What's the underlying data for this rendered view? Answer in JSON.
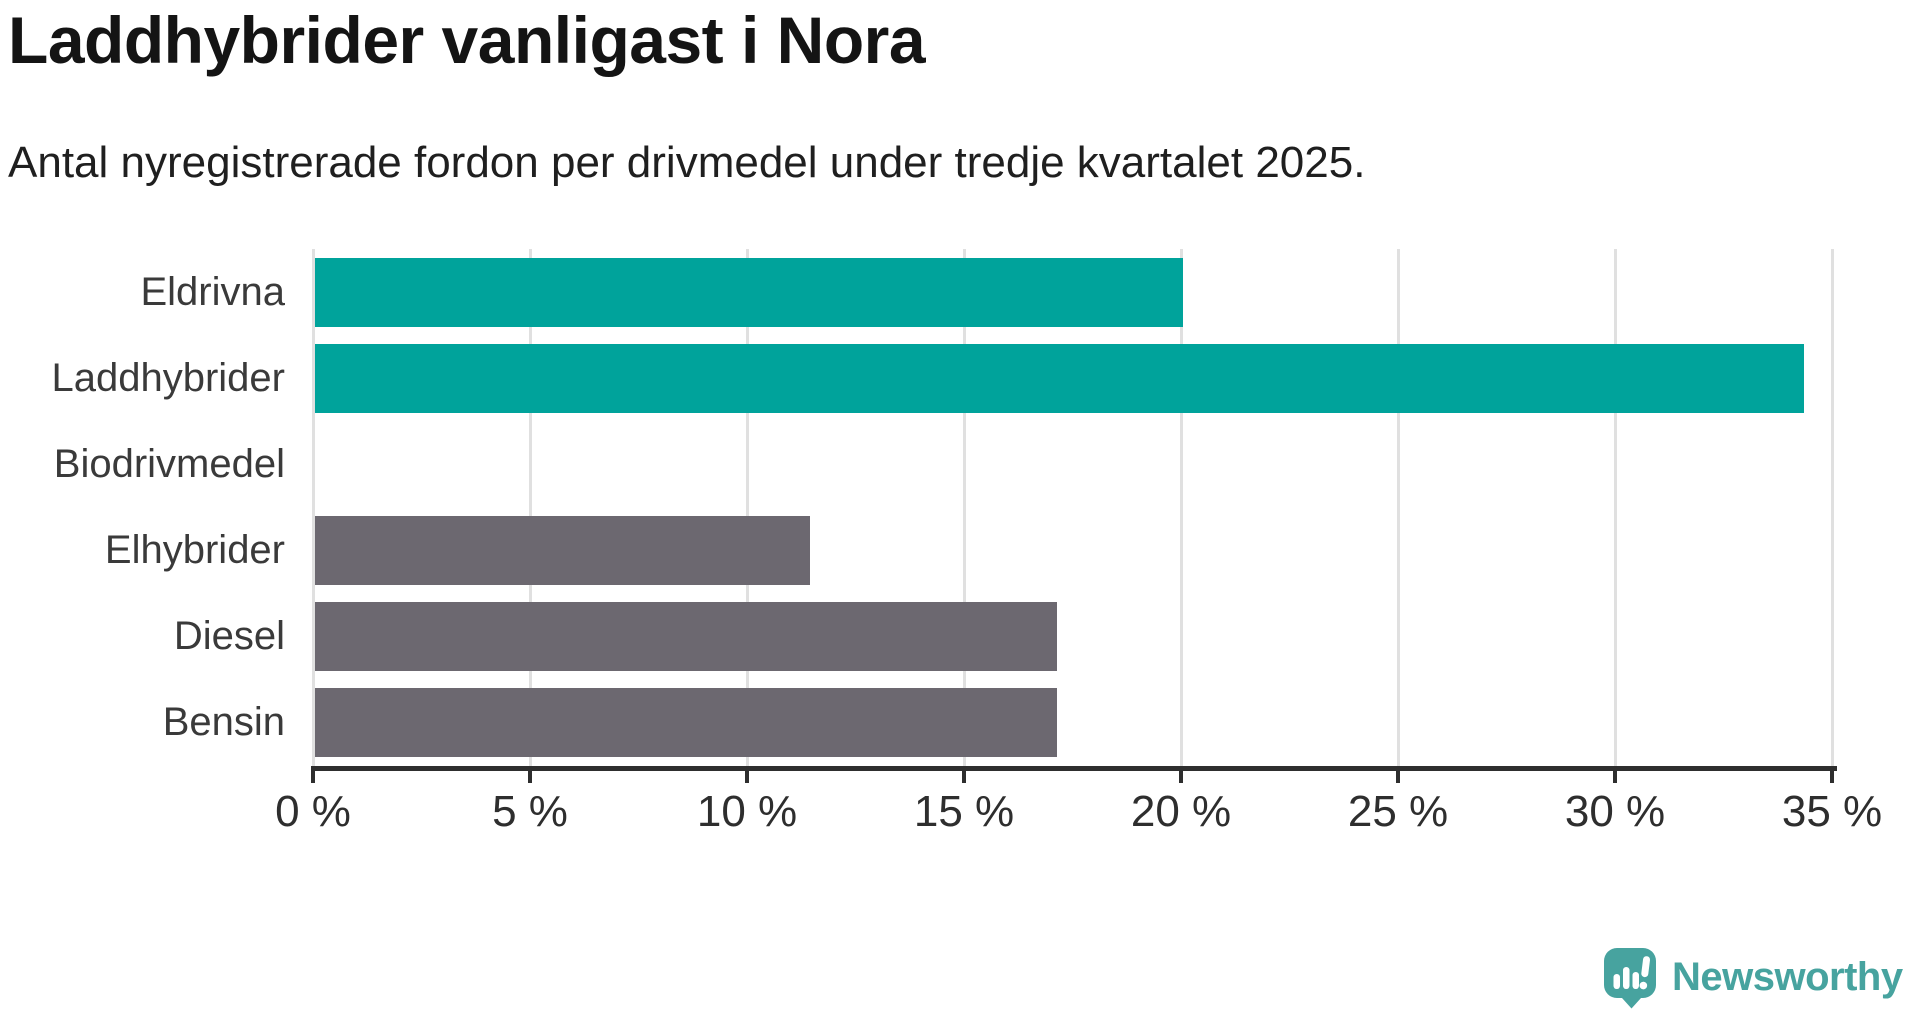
{
  "header": {
    "title": "Laddhybrider vanligast i Nora",
    "subtitle": "Antal nyregistrerade fordon per drivmedel under tredje kvartalet 2025."
  },
  "chart_data": {
    "type": "bar",
    "orientation": "horizontal",
    "title": "Laddhybrider vanligast i Nora",
    "subtitle": "Antal nyregistrerade fordon per drivmedel under tredje kvartalet 2025.",
    "categories": [
      "Eldrivna",
      "Laddhybrider",
      "Biodrivmedel",
      "Elhybrider",
      "Diesel",
      "Bensin"
    ],
    "values": [
      20.0,
      34.3,
      0,
      11.4,
      17.1,
      17.1
    ],
    "unit": "%",
    "xlim": [
      0,
      35
    ],
    "x_ticks": [
      0,
      5,
      10,
      15,
      20,
      25,
      30,
      35
    ],
    "x_tick_labels": [
      "0 %",
      "5 %",
      "10 %",
      "15 %",
      "20 %",
      "25 %",
      "30 %",
      "35 %"
    ],
    "bar_colors": [
      "#00a39b",
      "#00a39b",
      "#6c6870",
      "#6c6870",
      "#6c6870",
      "#6c6870"
    ],
    "grid": true,
    "legend": "none"
  },
  "colors": {
    "highlight_teal": "#00a39b",
    "bar_gray": "#6c6870",
    "gridline": "#e0e0e0",
    "axis": "#2e2e2e",
    "title_text": "#141414",
    "label_text": "#3a3a3a",
    "logo_teal": "#47a39f"
  },
  "branding": {
    "logo_text": "Newsworthy"
  }
}
